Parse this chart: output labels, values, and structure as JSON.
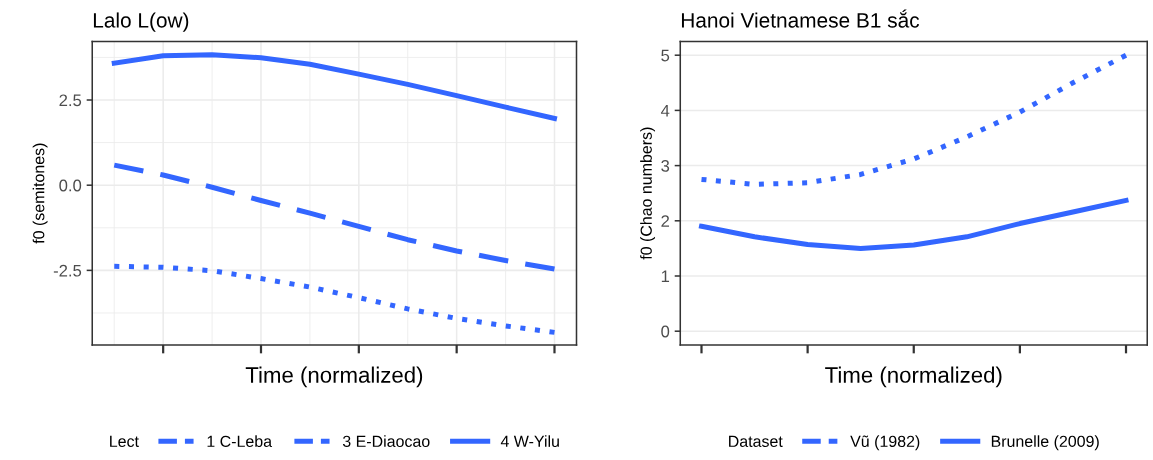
{
  "chart_data": [
    {
      "type": "line",
      "title": "Lalo L(ow)",
      "xlabel": "Time (normalized)",
      "ylabel": "f0 (semitones)",
      "legend_title": "Lect",
      "legend": "bottom",
      "grid": true,
      "marker": "none",
      "categories": [
        null,
        null,
        null,
        null,
        null,
        null,
        null,
        null,
        null,
        null
      ],
      "ylim": [
        -4.69,
        4.22
      ],
      "yticks": [
        {
          "value": -2.5,
          "label": "-2.5"
        },
        {
          "value": 0.0,
          "label": "0.0"
        },
        {
          "value": 2.5,
          "label": "2.5"
        }
      ],
      "series": [
        {
          "name": "1 C-Leba",
          "color": "#3366ff",
          "line_style": "dotted",
          "values": [
            -2.38,
            -2.41,
            -2.51,
            -2.74,
            -2.99,
            -3.3,
            -3.63,
            -3.91,
            -4.13,
            -4.32
          ]
        },
        {
          "name": "3 E-Diaocao",
          "color": "#3366ff",
          "line_style": "dashed",
          "values": [
            0.59,
            0.3,
            -0.06,
            -0.45,
            -0.82,
            -1.21,
            -1.6,
            -1.93,
            -2.21,
            -2.46
          ]
        },
        {
          "name": "4 W-Yilu",
          "color": "#3366ff",
          "line_style": "solid",
          "values": [
            3.58,
            3.8,
            3.83,
            3.74,
            3.55,
            3.26,
            2.96,
            2.63,
            2.29,
            1.96
          ]
        }
      ]
    },
    {
      "type": "line",
      "title": "Hanoi Vietnamese B1 sắc",
      "xlabel": "Time (normalized)",
      "ylabel": "f0 (Chao numbers)",
      "legend_title": "Dataset",
      "legend": "bottom",
      "grid": "y",
      "marker": "none",
      "categories": [
        null,
        null,
        null,
        null,
        null,
        null,
        null,
        null,
        null
      ],
      "ylim": [
        -0.25,
        5.25
      ],
      "yticks": [
        0,
        1,
        2,
        3,
        4,
        5
      ],
      "series": [
        {
          "name": "Vũ (1982)",
          "color": "#3366ff",
          "line_style": "dotted",
          "values": [
            2.75,
            2.66,
            2.69,
            2.84,
            3.12,
            3.52,
            3.97,
            4.5,
            5.0
          ]
        },
        {
          "name": "Brunelle (2009)",
          "color": "#3366ff",
          "line_style": "solid",
          "values": [
            1.9,
            1.71,
            1.57,
            1.5,
            1.56,
            1.71,
            1.95,
            2.16,
            2.37
          ]
        }
      ]
    }
  ]
}
